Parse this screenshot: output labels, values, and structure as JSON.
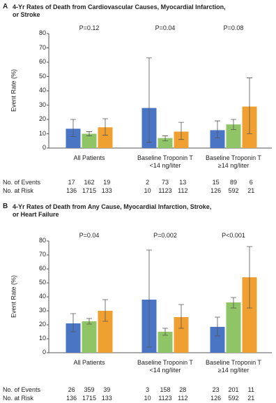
{
  "chart_data": [
    {
      "type": "bar",
      "panel_label": "A",
      "title": "4-Yr Rates of Death from Cardiovascular Causes, Myocardial Infarction,\nor Stroke",
      "y_label": "Event Rate (%)",
      "categories": [
        "All Patients",
        "Baseline Troponin T\n<14 ng/liter",
        "Baseline Troponin T\n≥14 ng/liter"
      ],
      "p_values": [
        "P=0.12",
        "P=0.04",
        "P=0.08"
      ],
      "ylim": [
        0,
        80
      ],
      "yticks": [
        0,
        10,
        20,
        30,
        40,
        50,
        60,
        70,
        80
      ],
      "series": [
        {
          "color": "#4a74c4",
          "values": [
            13.5,
            28,
            12.5
          ],
          "ci_low": [
            8,
            4,
            7
          ],
          "ci_high": [
            20,
            63,
            19
          ]
        },
        {
          "color": "#8fc567",
          "values": [
            10,
            7,
            16.5
          ],
          "ci_low": [
            8.5,
            5,
            13
          ],
          "ci_high": [
            11.5,
            8.5,
            20
          ]
        },
        {
          "color": "#f0a030",
          "values": [
            14.5,
            11.5,
            29
          ],
          "ci_low": [
            9,
            6,
            10
          ],
          "ci_high": [
            20.5,
            18,
            49
          ]
        }
      ],
      "table": [
        {
          "label": "No. of Events",
          "values": [
            [
              17,
              162,
              19
            ],
            [
              2,
              73,
              13
            ],
            [
              15,
              89,
              6
            ]
          ]
        },
        {
          "label": "No. at Risk",
          "values": [
            [
              136,
              1715,
              133
            ],
            [
              10,
              1123,
              112
            ],
            [
              126,
              592,
              21
            ]
          ]
        }
      ]
    },
    {
      "type": "bar",
      "panel_label": "B",
      "title": "4-Yr Rates of Death from Any Cause, Myocardial Infarction, Stroke,\nor Heart Failure",
      "y_label": "Event Rate (%)",
      "categories": [
        "All Patients",
        "Baseline Troponin T\n<14 ng/liter",
        "Baseline Troponin T\n≥14 ng/liter"
      ],
      "p_values": [
        "P=0.04",
        "P=0.002",
        "P<0.001"
      ],
      "ylim": [
        0,
        80
      ],
      "yticks": [
        0,
        10,
        20,
        30,
        40,
        50,
        60,
        70,
        80
      ],
      "series": [
        {
          "color": "#4a74c4",
          "values": [
            21,
            38,
            18.5
          ],
          "ci_low": [
            15,
            4,
            12
          ],
          "ci_high": [
            28,
            73.5,
            25.5
          ]
        },
        {
          "color": "#8fc567",
          "values": [
            22.5,
            15,
            36
          ],
          "ci_low": [
            20.5,
            12.5,
            32
          ],
          "ci_high": [
            24.5,
            17.5,
            39.5
          ]
        },
        {
          "color": "#f0a030",
          "values": [
            30,
            25.5,
            54
          ],
          "ci_low": [
            22.5,
            17.5,
            32
          ],
          "ci_high": [
            38,
            34.5,
            76
          ]
        }
      ],
      "table": [
        {
          "label": "No. of Events",
          "values": [
            [
              26,
              359,
              39
            ],
            [
              3,
              158,
              28
            ],
            [
              23,
              201,
              11
            ]
          ]
        },
        {
          "label": "No. at Risk",
          "values": [
            [
              136,
              1715,
              133
            ],
            [
              10,
              1123,
              112
            ],
            [
              126,
              592,
              21
            ]
          ]
        }
      ]
    }
  ]
}
